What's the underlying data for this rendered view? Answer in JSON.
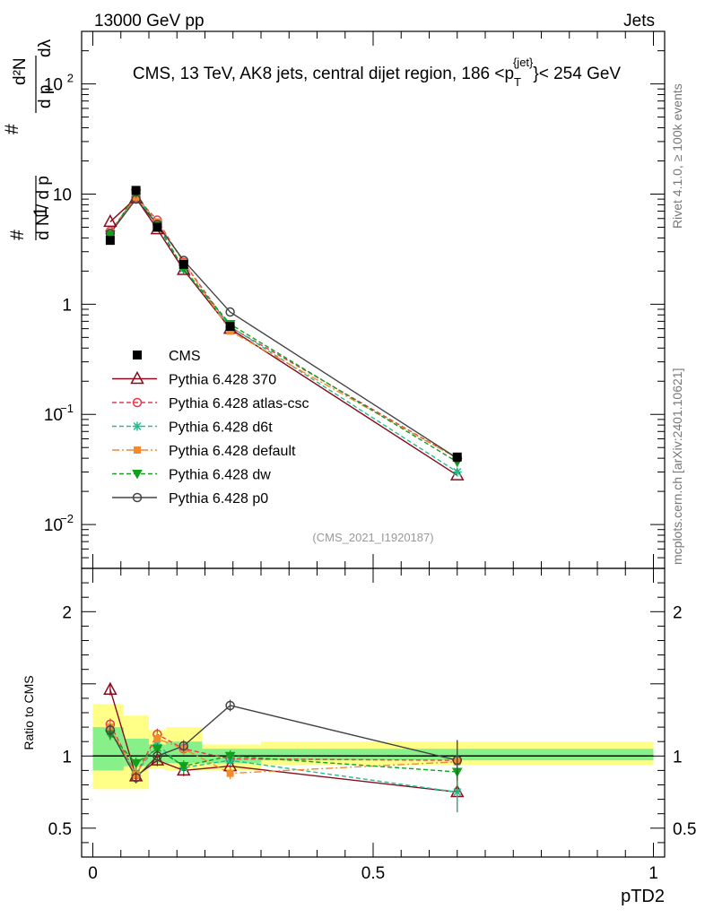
{
  "header": {
    "left": "13000 GeV pp",
    "right": "Jets"
  },
  "side_labels": {
    "rivet": "Rivet 4.1.0, ≥ 100k events",
    "mcplots": "mcplots.cern.ch [arXiv:2401.10621]"
  },
  "chart_data": {
    "type": "line",
    "title": "CMS, 13 TeV, AK8 jets, central dijet region, 186 <p",
    "title_sub": "T",
    "title_sup": "{jet}",
    "title_end": "}< 254 GeV",
    "watermark": "(CMS_2021_I1920187)",
    "xlabel": "pTD2",
    "ylabel_main": "1/dN/dp_T  d²N/dp_T dλ",
    "ylabel_ratio": "Ratio to CMS",
    "ylabel_parts": {
      "one": "1",
      "dN": "d N / d p",
      "dN_sub": "T",
      "d2N": "d²N",
      "dpdl": "d p",
      "dpdl_sub": "T",
      "dl": "dλ",
      "hash": "#"
    },
    "xlim": [
      -0.02,
      1.02
    ],
    "ylim_main": [
      0.004,
      300
    ],
    "ylim_ratio": [
      0.3,
      2.3
    ],
    "x_ticks": [
      {
        "value": 0,
        "label": "0"
      },
      {
        "value": 0.5,
        "label": "0.5"
      },
      {
        "value": 1,
        "label": "1"
      }
    ],
    "y_ticks_main": [
      {
        "value": 100,
        "base": "10",
        "exp": "2"
      },
      {
        "value": 10,
        "base": "10",
        "exp": ""
      },
      {
        "value": 1,
        "base": "1",
        "exp": ""
      },
      {
        "value": 0.1,
        "base": "10",
        "exp": "−1"
      },
      {
        "value": 0.01,
        "base": "10",
        "exp": "−2"
      }
    ],
    "y_ticks_ratio": [
      {
        "value": 2,
        "label": "2"
      },
      {
        "value": 1,
        "label": "1"
      },
      {
        "value": 0.5,
        "label": "0.5"
      }
    ],
    "x": [
      0.031,
      0.077,
      0.115,
      0.162,
      0.245,
      0.65
    ],
    "bin_edges": [
      0,
      0.055,
      0.1,
      0.13,
      0.195,
      0.3,
      1.0
    ],
    "band_outer": [
      [
        0.77,
        1.36
      ],
      [
        0.77,
        1.28
      ],
      [
        0.91,
        1.18
      ],
      [
        0.9,
        1.2
      ],
      [
        0.9,
        1.08
      ],
      [
        0.94,
        1.1
      ]
    ],
    "band_inner": [
      [
        0.9,
        1.2
      ],
      [
        0.93,
        1.12
      ],
      [
        0.95,
        1.08
      ],
      [
        0.95,
        1.1
      ],
      [
        0.95,
        1.05
      ],
      [
        0.97,
        1.05
      ]
    ],
    "data": {
      "name": "CMS",
      "values": [
        3.8,
        10.8,
        5.0,
        2.3,
        0.63,
        0.041
      ],
      "color": "#000000"
    },
    "series": [
      {
        "name": "Pythia 6.428 370",
        "values": [
          5.6,
          9.2,
          4.8,
          2.05,
          0.6,
          0.028
        ],
        "ratio": [
          1.46,
          0.86,
          0.97,
          0.9,
          0.93,
          0.75
        ],
        "color": "#8b0a1e",
        "marker": "triangle-open",
        "dash": ""
      },
      {
        "name": "Pythia 6.428 atlas-csc",
        "values": [
          4.6,
          9.4,
          5.8,
          2.4,
          0.62,
          0.04
        ],
        "ratio": [
          1.22,
          0.87,
          1.15,
          1.05,
          0.98,
          0.97
        ],
        "color": "#e8394c",
        "marker": "circle-open",
        "dash": "5,3"
      },
      {
        "name": "Pythia 6.428 d6t",
        "values": [
          4.4,
          9.5,
          5.4,
          2.1,
          0.63,
          0.03
        ],
        "ratio": [
          1.17,
          0.88,
          1.08,
          0.92,
          0.97,
          0.75
        ],
        "color": "#1fbf8f",
        "marker": "star",
        "dash": "5,3"
      },
      {
        "name": "Pythia 6.428 default",
        "values": [
          4.5,
          9.4,
          5.6,
          2.4,
          0.57,
          0.04
        ],
        "ratio": [
          1.2,
          0.87,
          1.12,
          1.05,
          0.88,
          0.96
        ],
        "color": "#f28a30",
        "marker": "square",
        "dash": "8,3,2,3"
      },
      {
        "name": "Pythia 6.428 dw",
        "values": [
          4.3,
          10.2,
          5.2,
          2.1,
          0.66,
          0.037
        ],
        "ratio": [
          1.15,
          0.95,
          1.05,
          0.93,
          1.0,
          0.89
        ],
        "color": "#12a11c",
        "marker": "triangle-down",
        "dash": "5,3"
      },
      {
        "name": "Pythia 6.428 p0",
        "values": [
          4.4,
          9.0,
          5.3,
          2.5,
          0.85,
          0.04
        ],
        "ratio": [
          1.18,
          0.85,
          1.0,
          1.07,
          1.35,
          0.97
        ],
        "color": "#444444",
        "marker": "circle-open",
        "dash": ""
      }
    ]
  }
}
